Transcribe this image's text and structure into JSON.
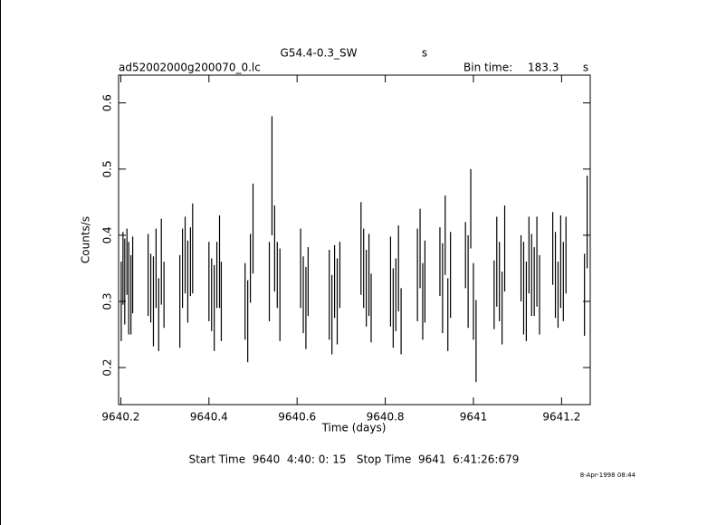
{
  "chart_data": {
    "type": "errorbar",
    "title": "G54.4-0.3_SW",
    "title_unit": "s",
    "filename": "ad52002000g200070_0.lc",
    "bin_time_label": "Bin time:",
    "bin_time": 183.3,
    "bin_time_unit": "s",
    "xlabel": "Time (days)",
    "ylabel": "Counts/s",
    "footer": "Start Time  9640  4:40: 0: 15   Stop Time  9641  6:41:26:679",
    "date": "8-Apr-1998 08:44",
    "color": "#000000",
    "xlim": [
      9640.195,
      9641.265
    ],
    "xticks": [
      9640.2,
      9640.4,
      9640.6,
      9640.8,
      9641,
      9641.2
    ],
    "ylim": [
      0.144,
      0.642
    ],
    "yticks": [
      0.2,
      0.3,
      0.4,
      0.5,
      0.6
    ],
    "x": [
      9640.201,
      9640.205,
      9640.209,
      9640.214,
      9640.218,
      9640.223,
      9640.227,
      9640.262,
      9640.268,
      9640.274,
      9640.28,
      9640.286,
      9640.292,
      9640.298,
      9640.334,
      9640.34,
      9640.346,
      9640.352,
      9640.358,
      9640.363,
      9640.4,
      9640.406,
      9640.412,
      9640.418,
      9640.424,
      9640.428,
      9640.482,
      9640.488,
      9640.494,
      9640.5,
      9640.537,
      9640.543,
      9640.549,
      9640.555,
      9640.561,
      9640.608,
      9640.614,
      9640.62,
      9640.625,
      9640.673,
      9640.679,
      9640.685,
      9640.691,
      9640.697,
      9640.745,
      9640.751,
      9640.757,
      9640.763,
      9640.768,
      9640.812,
      9640.818,
      9640.824,
      9640.83,
      9640.836,
      9640.873,
      9640.879,
      9640.885,
      9640.89,
      9640.924,
      9640.93,
      9640.936,
      9640.942,
      9640.948,
      9640.982,
      9640.988,
      9640.994,
      9641.0,
      9641.006,
      9641.047,
      9641.053,
      9641.059,
      9641.065,
      9641.071,
      9641.108,
      9641.114,
      9641.12,
      9641.126,
      9641.132,
      9641.138,
      9641.144,
      9641.15,
      9641.18,
      9641.186,
      9641.192,
      9641.198,
      9641.204,
      9641.21,
      9641.252,
      9641.258
    ],
    "values": [
      0.3,
      0.35,
      0.33,
      0.36,
      0.32,
      0.31,
      0.34,
      0.34,
      0.32,
      0.3,
      0.35,
      0.28,
      0.36,
      0.31,
      0.3,
      0.35,
      0.37,
      0.33,
      0.36,
      0.38,
      0.33,
      0.31,
      0.29,
      0.34,
      0.36,
      0.3,
      0.3,
      0.27,
      0.35,
      0.41,
      0.33,
      0.49,
      0.38,
      0.34,
      0.31,
      0.35,
      0.31,
      0.29,
      0.33,
      0.31,
      0.28,
      0.33,
      0.3,
      0.34,
      0.38,
      0.35,
      0.32,
      0.34,
      0.29,
      0.33,
      0.29,
      0.31,
      0.35,
      0.27,
      0.34,
      0.38,
      0.3,
      0.33,
      0.36,
      0.32,
      0.4,
      0.28,
      0.34,
      0.37,
      0.33,
      0.44,
      0.3,
      0.24,
      0.31,
      0.36,
      0.33,
      0.29,
      0.38,
      0.35,
      0.32,
      0.3,
      0.37,
      0.34,
      0.33,
      0.36,
      0.31,
      0.38,
      0.34,
      0.31,
      0.36,
      0.33,
      0.37,
      0.31,
      0.42
    ],
    "errors": [
      0.06,
      0.055,
      0.065,
      0.05,
      0.07,
      0.06,
      0.058,
      0.062,
      0.052,
      0.068,
      0.06,
      0.055,
      0.065,
      0.05,
      0.07,
      0.06,
      0.058,
      0.062,
      0.052,
      0.068,
      0.06,
      0.055,
      0.065,
      0.05,
      0.07,
      0.06,
      0.058,
      0.062,
      0.052,
      0.068,
      0.06,
      0.09,
      0.065,
      0.05,
      0.07,
      0.06,
      0.058,
      0.062,
      0.052,
      0.068,
      0.06,
      0.055,
      0.065,
      0.05,
      0.07,
      0.06,
      0.058,
      0.062,
      0.052,
      0.068,
      0.06,
      0.055,
      0.065,
      0.05,
      0.07,
      0.06,
      0.058,
      0.062,
      0.052,
      0.068,
      0.06,
      0.055,
      0.065,
      0.05,
      0.07,
      0.06,
      0.058,
      0.062,
      0.052,
      0.068,
      0.06,
      0.055,
      0.065,
      0.05,
      0.07,
      0.06,
      0.058,
      0.062,
      0.052,
      0.068,
      0.06,
      0.055,
      0.065,
      0.05,
      0.07,
      0.06,
      0.058,
      0.062,
      0.07
    ]
  }
}
